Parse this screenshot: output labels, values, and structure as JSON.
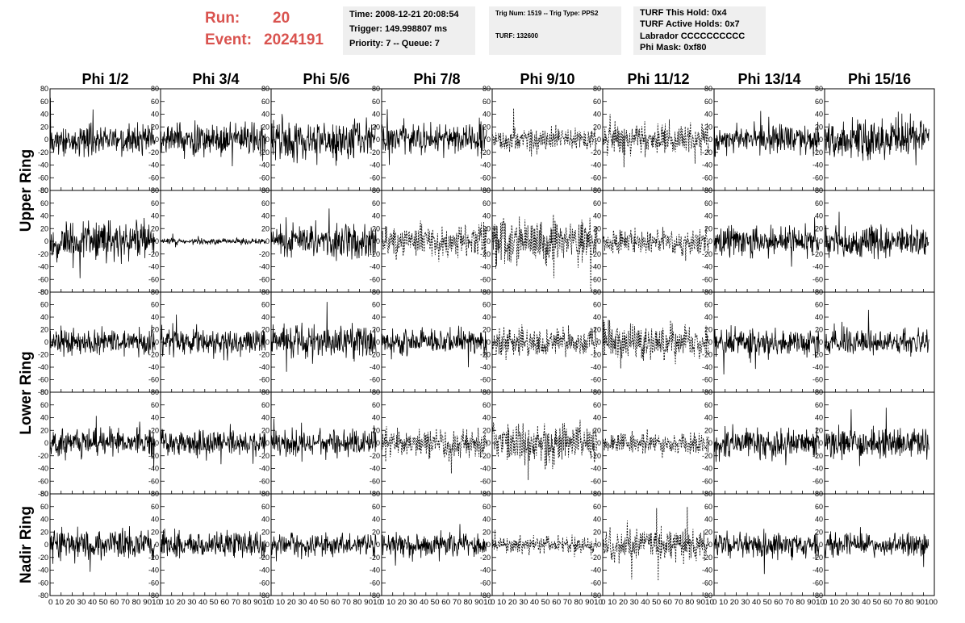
{
  "header": {
    "run_label": "Run:",
    "run_value": "20",
    "event_label": "Event:",
    "event_value": "2024191",
    "accent_color": "#d9534f"
  },
  "info_time": {
    "time": "Time: 2008-12-21 20:08:54",
    "trigger": "Trigger: 149.998807 ms",
    "priority": "Priority: 7 -- Queue: 7"
  },
  "info_trig": {
    "trig": "Trig Num: 1519 -- Trig Type: PPS2",
    "turf": "TURF: 132600"
  },
  "info_turf": {
    "hold": "TURF This Hold: 0x4",
    "active": "TURF Active Holds: 0x7",
    "labrador": "Labrador CCCCCCCCCC",
    "phimask": "Phi Mask: 0xf80"
  },
  "chart_data": {
    "type": "line",
    "columns": [
      "Phi 1/2",
      "Phi 3/4",
      "Phi 5/6",
      "Phi 7/8",
      "Phi 9/10",
      "Phi 11/12",
      "Phi 13/14",
      "Phi 15/16"
    ],
    "row_groups": [
      {
        "label": "Upper Ring",
        "rows": [
          0,
          1
        ]
      },
      {
        "label": "Lower Ring",
        "rows": [
          2,
          3
        ]
      },
      {
        "label": "Nadir Ring",
        "rows": [
          4
        ]
      }
    ],
    "xlim": [
      0,
      100
    ],
    "ylim": [
      -80,
      80
    ],
    "y_ticks": [
      80,
      60,
      40,
      20,
      0,
      -20,
      -40,
      -60,
      -80
    ],
    "x_ticks": [
      0,
      10,
      20,
      30,
      40,
      50,
      60,
      70,
      80,
      90,
      100
    ],
    "x_tick_labels_bottom": "0 10 20 30 40 50 60 70 80 9010",
    "x_tick_labels_last": "0 10 20 30 40 50 60 70 80 90100",
    "trace_x_range": [
      0,
      95
    ],
    "samples_per_trace": 260,
    "row_amplitudes": [
      [
        15,
        15,
        18,
        14,
        12,
        14,
        14,
        18
      ],
      [
        18,
        3,
        15,
        15,
        22,
        12,
        14,
        15
      ],
      [
        13,
        13,
        16,
        12,
        14,
        18,
        13,
        12
      ],
      [
        14,
        12,
        13,
        14,
        20,
        10,
        13,
        15
      ],
      [
        14,
        12,
        11,
        11,
        8,
        15,
        12,
        11
      ]
    ],
    "dashed_traces": [
      [
        false,
        false,
        false,
        false,
        true,
        true,
        false,
        false
      ],
      [
        false,
        false,
        false,
        true,
        true,
        true,
        false,
        false
      ],
      [
        false,
        false,
        false,
        false,
        true,
        true,
        false,
        false
      ],
      [
        false,
        false,
        false,
        true,
        true,
        true,
        false,
        false
      ],
      [
        false,
        false,
        false,
        false,
        true,
        true,
        false,
        false
      ]
    ]
  }
}
